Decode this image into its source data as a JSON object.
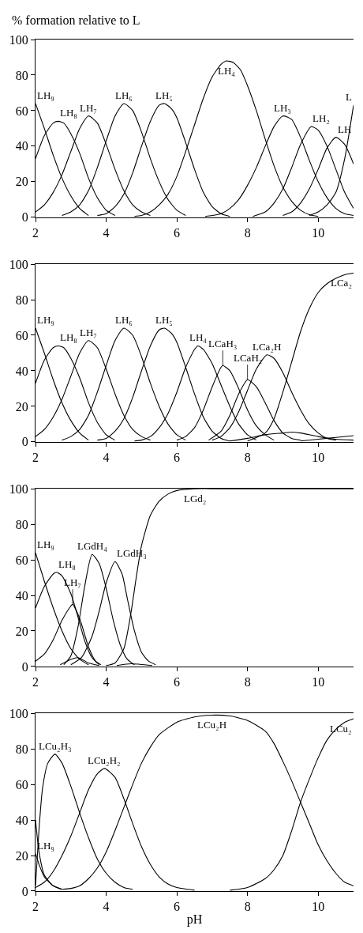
{
  "chart_data": [
    {
      "type": "line",
      "ylabel": "% formation relative to L",
      "xlim": [
        2,
        11
      ],
      "ylim": [
        0,
        100
      ],
      "xticks": [
        2,
        4,
        6,
        8,
        10
      ],
      "yticks": [
        0,
        20,
        40,
        60,
        80,
        100
      ],
      "marker": "none",
      "line_style": "solid",
      "series": [
        {
          "name": "LH₉",
          "color": "#000000",
          "x": [
            2,
            2.25,
            2.5,
            2.75,
            3,
            3.25,
            3.5
          ],
          "values": [
            64,
            50,
            35,
            22,
            12,
            5,
            1
          ]
        },
        {
          "name": "LH₈",
          "color": "#000000",
          "x": [
            2,
            2.25,
            2.5,
            2.65,
            2.8,
            3,
            3.25,
            3.5,
            3.75,
            4,
            4.25
          ],
          "values": [
            33,
            46,
            53,
            54,
            53,
            47,
            36,
            22,
            11,
            4,
            1
          ]
        },
        {
          "name": "LH₇",
          "color": "#000000",
          "x": [
            2,
            2.25,
            2.5,
            2.75,
            3,
            3.25,
            3.5,
            3.75,
            4,
            4.25,
            4.5,
            4.75,
            5,
            5.25
          ],
          "values": [
            3,
            7,
            14,
            24,
            37,
            50,
            57,
            53,
            41,
            27,
            15,
            7,
            3,
            1
          ]
        },
        {
          "name": "LH₆",
          "color": "#000000",
          "x": [
            2.75,
            3,
            3.25,
            3.5,
            3.75,
            4,
            4.25,
            4.5,
            4.75,
            5,
            5.25,
            5.5,
            5.75,
            6,
            6.25
          ],
          "values": [
            1,
            3,
            7,
            15,
            28,
            43,
            57,
            64,
            60,
            48,
            33,
            20,
            10,
            4,
            1
          ]
        },
        {
          "name": "LH₅",
          "color": "#000000",
          "x": [
            3.75,
            4,
            4.25,
            4.5,
            4.75,
            5,
            5.25,
            5.5,
            5.65,
            5.85,
            6,
            6.25,
            6.5,
            6.75,
            7,
            7.25,
            7.5
          ],
          "values": [
            1,
            2,
            6,
            13,
            25,
            40,
            54,
            63,
            64,
            61,
            56,
            42,
            27,
            14,
            6,
            2,
            0.5
          ]
        },
        {
          "name": "LH₄",
          "color": "#000000",
          "x": [
            4.8,
            5,
            5.25,
            5.5,
            5.75,
            6,
            6.25,
            6.5,
            6.75,
            7,
            7.25,
            7.4,
            7.6,
            7.8,
            8,
            8.25,
            8.5,
            8.75,
            9,
            9.25,
            9.5,
            9.75,
            10
          ],
          "values": [
            0.5,
            1,
            3,
            7,
            13,
            23,
            37,
            52,
            67,
            79,
            86,
            88,
            87,
            83,
            74,
            60,
            44,
            29,
            17,
            9,
            4,
            1.5,
            0.5
          ]
        },
        {
          "name": "LH₃",
          "color": "#000000",
          "x": [
            6.8,
            7,
            7.25,
            7.5,
            7.75,
            8,
            8.25,
            8.5,
            8.75,
            9,
            9.25,
            9.5,
            9.75,
            10,
            10.25,
            10.5,
            10.75,
            11
          ],
          "values": [
            0.5,
            1,
            2,
            5,
            10,
            18,
            28,
            40,
            51,
            57,
            55,
            45,
            32,
            20,
            11,
            5,
            2,
            1
          ]
        },
        {
          "name": "LH₂",
          "color": "#000000",
          "x": [
            8.15,
            8.5,
            8.75,
            9,
            9.25,
            9.5,
            9.8,
            10,
            10.25,
            10.5,
            10.75,
            11
          ],
          "values": [
            0.5,
            3,
            8,
            16,
            28,
            41,
            51,
            49,
            40,
            27,
            14,
            5
          ]
        },
        {
          "name": "LH",
          "color": "#000000",
          "x": [
            9,
            9.25,
            9.5,
            9.75,
            10,
            10.25,
            10.5,
            10.75,
            11
          ],
          "values": [
            1,
            3,
            8,
            16,
            27,
            39,
            45,
            41,
            30
          ]
        },
        {
          "name": "L",
          "color": "#000000",
          "x": [
            9.75,
            10,
            10.25,
            10.5,
            10.75,
            11
          ],
          "values": [
            1,
            3,
            7,
            14,
            33,
            63
          ]
        }
      ]
    },
    {
      "type": "line",
      "xlim": [
        2,
        11
      ],
      "ylim": [
        0,
        100
      ],
      "xticks": [
        2,
        4,
        6,
        8,
        10
      ],
      "yticks": [
        0,
        20,
        40,
        60,
        80,
        100
      ],
      "marker": "none",
      "line_style": "solid",
      "series": [
        {
          "name": "LH₉",
          "color": "#000000",
          "x": [
            2,
            2.25,
            2.5,
            2.75,
            3,
            3.25,
            3.5
          ],
          "values": [
            64,
            50,
            35,
            22,
            12,
            5,
            1
          ]
        },
        {
          "name": "LH₈",
          "color": "#000000",
          "x": [
            2,
            2.25,
            2.5,
            2.65,
            2.8,
            3,
            3.25,
            3.5,
            3.75,
            4,
            4.25
          ],
          "values": [
            33,
            46,
            53,
            54,
            53,
            47,
            36,
            22,
            11,
            4,
            1
          ]
        },
        {
          "name": "LH₇",
          "color": "#000000",
          "x": [
            2,
            2.25,
            2.5,
            2.75,
            3,
            3.25,
            3.5,
            3.75,
            4,
            4.25,
            4.5,
            4.75,
            5,
            5.25
          ],
          "values": [
            3,
            7,
            14,
            24,
            37,
            50,
            57,
            53,
            41,
            27,
            15,
            7,
            3,
            1
          ]
        },
        {
          "name": "LH₆",
          "color": "#000000",
          "x": [
            2.75,
            3,
            3.25,
            3.5,
            3.75,
            4,
            4.25,
            4.5,
            4.75,
            5,
            5.25,
            5.5,
            5.75,
            6,
            6.25
          ],
          "values": [
            1,
            3,
            7,
            15,
            28,
            43,
            57,
            64,
            60,
            48,
            33,
            20,
            10,
            4,
            1
          ]
        },
        {
          "name": "LH₅",
          "color": "#000000",
          "x": [
            3.75,
            4,
            4.25,
            4.5,
            4.75,
            5,
            5.25,
            5.5,
            5.65,
            5.85,
            6,
            6.25,
            6.5,
            6.75,
            7,
            7.25,
            7.5
          ],
          "values": [
            1,
            2,
            6,
            13,
            25,
            40,
            54,
            63,
            64,
            61,
            56,
            42,
            27,
            14,
            6,
            2,
            0.5
          ]
        },
        {
          "name": "LH₄",
          "color": "#000000",
          "x": [
            4.8,
            5,
            5.25,
            5.5,
            5.75,
            6,
            6.25,
            6.5,
            6.6,
            6.75,
            7,
            7.25,
            7.5,
            7.75,
            8,
            8.25
          ],
          "values": [
            0.5,
            1,
            3,
            8,
            16,
            28,
            42,
            52,
            54,
            52,
            44,
            32,
            20,
            10,
            4,
            1
          ]
        },
        {
          "name": "LCaH₃",
          "color": "#000000",
          "x": [
            6,
            6.25,
            6.5,
            6.75,
            7,
            7.25,
            7.3,
            7.5,
            7.75,
            8,
            8.25,
            8.5,
            8.75
          ],
          "values": [
            1,
            3,
            8,
            18,
            31,
            42,
            43,
            40,
            30,
            18,
            9,
            4,
            1
          ]
        },
        {
          "name": "LCaH₂",
          "color": "#000000",
          "x": [
            6.9,
            7.25,
            7.5,
            7.75,
            8,
            8.25,
            8.5,
            8.75,
            9,
            9.25,
            9.5
          ],
          "values": [
            1,
            6,
            15,
            27,
            35,
            31,
            22,
            12,
            5,
            2,
            1
          ]
        },
        {
          "name": "LCa₂H",
          "color": "#000000",
          "x": [
            7,
            7.25,
            7.5,
            7.75,
            8,
            8.25,
            8.55,
            8.75,
            9,
            9.25,
            9.5,
            9.75,
            10,
            10.25,
            10.5
          ],
          "values": [
            1,
            3,
            8,
            17,
            29,
            41,
            49,
            47,
            39,
            28,
            18,
            10,
            5,
            2,
            1
          ]
        },
        {
          "name": "LCa₂",
          "color": "#000000",
          "x": [
            8,
            8.5,
            8.75,
            9,
            9.25,
            9.5,
            9.75,
            10,
            10.25,
            10.5,
            10.75,
            11
          ],
          "values": [
            0.5,
            5,
            13,
            28,
            45,
            62,
            75,
            84,
            89,
            92,
            94,
            95
          ]
        },
        {
          "color": "#000000",
          "x": [
            7.5,
            8,
            8.5,
            9,
            9.25,
            9.5,
            10,
            10.5,
            11
          ],
          "values": [
            0.5,
            2,
            4,
            5,
            5.5,
            5,
            3,
            1.5,
            1
          ]
        },
        {
          "color": "#000000",
          "x": [
            9.5,
            10,
            10.5,
            11
          ],
          "values": [
            0.5,
            1.5,
            2.5,
            3.5
          ]
        }
      ]
    },
    {
      "type": "line",
      "xlim": [
        2,
        11
      ],
      "ylim": [
        0,
        100
      ],
      "xticks": [
        2,
        4,
        6,
        8,
        10
      ],
      "yticks": [
        0,
        20,
        40,
        60,
        80,
        100
      ],
      "marker": "none",
      "line_style": "solid",
      "series": [
        {
          "name": "LH₉",
          "color": "#000000",
          "x": [
            2,
            2.25,
            2.5,
            2.75,
            3,
            3.25,
            3.5
          ],
          "values": [
            64,
            48,
            33,
            20,
            10,
            4,
            1
          ]
        },
        {
          "name": "LH₈",
          "color": "#000000",
          "x": [
            2,
            2.25,
            2.5,
            2.6,
            2.75,
            3,
            3.2,
            3.4,
            3.6,
            3.8
          ],
          "values": [
            33,
            45,
            52,
            53,
            51,
            41,
            28,
            14,
            5,
            1
          ]
        },
        {
          "name": "LH₇",
          "color": "#000000",
          "x": [
            2,
            2.25,
            2.5,
            2.75,
            3,
            3.05,
            3.25,
            3.5,
            3.7,
            3.85
          ],
          "values": [
            3,
            7,
            15,
            26,
            34,
            35,
            27,
            11,
            3,
            1
          ]
        },
        {
          "name": "LGdH₄",
          "color": "#000000",
          "x": [
            2.8,
            3,
            3.2,
            3.4,
            3.6,
            3.8,
            4,
            4.2,
            4.4,
            4.6,
            4.8
          ],
          "values": [
            1,
            6,
            22,
            46,
            63,
            58,
            44,
            26,
            12,
            4,
            1
          ]
        },
        {
          "name": "LGdH₃",
          "color": "#000000",
          "x": [
            3,
            3.3,
            3.6,
            3.8,
            4,
            4.25,
            4.45,
            4.6,
            4.8,
            5,
            5.2,
            5.4
          ],
          "values": [
            1,
            5,
            17,
            31,
            47,
            59,
            52,
            38,
            20,
            8,
            3,
            1
          ]
        },
        {
          "name": "LGd₂",
          "color": "#000000",
          "x": [
            4,
            4.25,
            4.5,
            4.7,
            4.85,
            5,
            5.25,
            5.5,
            5.75,
            6,
            6.5,
            7,
            11
          ],
          "values": [
            0.5,
            2,
            10,
            30,
            50,
            68,
            85,
            93,
            97,
            99,
            100,
            100,
            100
          ]
        },
        {
          "color": "#000000",
          "x": [
            2.7,
            3,
            3.2,
            3.5,
            3.8
          ],
          "values": [
            1,
            4,
            5,
            2,
            0.5
          ]
        },
        {
          "color": "#000000",
          "x": [
            4.3,
            4.7,
            5.3
          ],
          "values": [
            0.5,
            1.5,
            0.5
          ]
        }
      ]
    },
    {
      "type": "line",
      "xlabel": "pH",
      "xlim": [
        2,
        11
      ],
      "ylim": [
        0,
        100
      ],
      "xticks": [
        2,
        4,
        6,
        8,
        10
      ],
      "yticks": [
        0,
        20,
        40,
        60,
        80,
        100
      ],
      "marker": "none",
      "line_style": "solid",
      "series": [
        {
          "name": "LCu₂H₃",
          "color": "#000000",
          "x": [
            2,
            2.1,
            2.2,
            2.35,
            2.55,
            2.75,
            3,
            3.25,
            3.5,
            3.75,
            4,
            4.25,
            4.5,
            4.75
          ],
          "values": [
            3,
            35,
            58,
            72,
            77,
            72,
            59,
            44,
            30,
            18,
            10,
            5,
            2,
            1
          ]
        },
        {
          "name": "LH₉",
          "color": "#000000",
          "x": [
            2,
            2.1,
            2.25,
            2.5,
            2.75
          ],
          "values": [
            21,
            15,
            8,
            3,
            1
          ]
        },
        {
          "color": "#000000",
          "x": [
            2,
            2.1,
            2.25,
            2.5,
            2.75
          ],
          "values": [
            40,
            22,
            9,
            3,
            1
          ]
        },
        {
          "name": "LCu₂H₂",
          "color": "#000000",
          "x": [
            2,
            2.25,
            2.5,
            2.75,
            3,
            3.25,
            3.5,
            3.75,
            3.95,
            4.25,
            4.5,
            4.75,
            5,
            5.25,
            5.5,
            5.75,
            6,
            6.5
          ],
          "values": [
            2,
            5,
            11,
            20,
            31,
            44,
            57,
            66,
            69,
            64,
            52,
            38,
            25,
            15,
            8,
            4,
            2,
            0.5
          ]
        },
        {
          "name": "LCu₂H",
          "color": "#000000",
          "x": [
            2.75,
            3,
            3.25,
            3.5,
            3.75,
            4,
            4.25,
            4.5,
            4.75,
            5,
            5.25,
            5.5,
            6,
            6.5,
            7,
            7.5,
            8,
            8.5,
            8.75,
            9,
            9.25,
            9.5,
            9.75,
            10,
            10.25,
            10.5,
            10.75,
            11
          ],
          "values": [
            1,
            1.5,
            3,
            7,
            13,
            22,
            34,
            47,
            60,
            72,
            81,
            88,
            95,
            98,
            99,
            98.5,
            96,
            90,
            83,
            73,
            62,
            50,
            38,
            26,
            17,
            10,
            5,
            3
          ]
        },
        {
          "name": "LCu₂",
          "color": "#000000",
          "x": [
            7.5,
            8,
            8.5,
            8.75,
            9,
            9.25,
            9.5,
            9.75,
            10,
            10.25,
            10.5,
            10.75,
            11
          ],
          "values": [
            0.5,
            2,
            7,
            12,
            20,
            34,
            50,
            63,
            75,
            85,
            91,
            95,
            97
          ]
        }
      ]
    }
  ]
}
